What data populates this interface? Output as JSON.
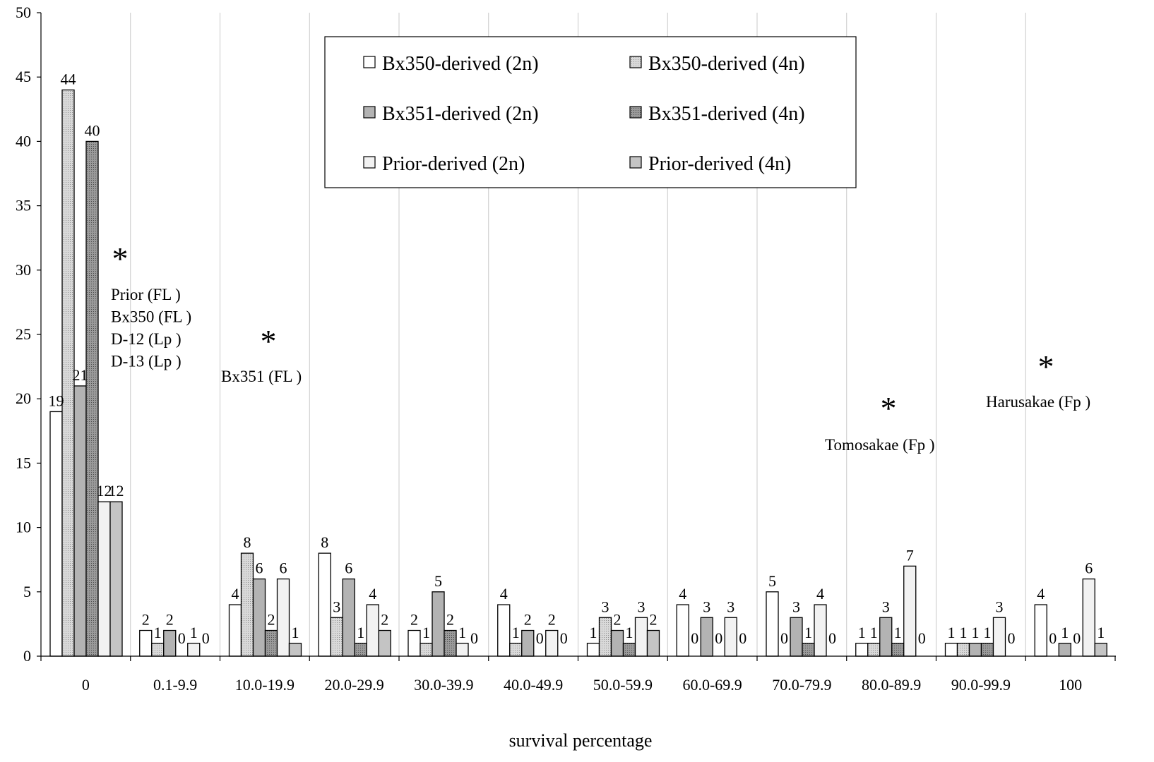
{
  "chart_data": {
    "type": "bar",
    "title": "",
    "xlabel": "survival percentage",
    "ylabel": "",
    "ylim": [
      0,
      50
    ],
    "yticks": [
      "0",
      "5",
      "10",
      "15",
      "20",
      "25",
      "30",
      "35",
      "40",
      "45",
      "50"
    ],
    "grid": "vertical category separators",
    "legend_position": "top-center",
    "categories": [
      "0",
      "0.1-9.9",
      "10.0-19.9",
      "20.0-29.9",
      "30.0-39.9",
      "40.0-49.9",
      "50.0-59.9",
      "60.0-69.9",
      "70.0-79.9",
      "80.0-89.9",
      "90.0-99.9",
      "100"
    ],
    "series": [
      {
        "name": "Bx350-derived (2n)",
        "fill": "#ffffff",
        "pattern": "none",
        "values": [
          19,
          2,
          4,
          8,
          2,
          4,
          1,
          4,
          5,
          1,
          1,
          4
        ]
      },
      {
        "name": "Bx350-derived (4n)",
        "fill": "#d9d9d9",
        "pattern": "dots",
        "values": [
          44,
          1,
          8,
          3,
          1,
          1,
          3,
          0,
          0,
          1,
          1,
          0
        ]
      },
      {
        "name": "Bx351-derived (2n)",
        "fill": "#b3b3b3",
        "pattern": "none",
        "values": [
          21,
          2,
          6,
          6,
          5,
          2,
          2,
          3,
          3,
          3,
          1,
          1
        ]
      },
      {
        "name": "Bx351-derived (4n)",
        "fill": "#9a9a9a",
        "pattern": "dots",
        "values": [
          40,
          0,
          2,
          1,
          2,
          0,
          1,
          0,
          1,
          1,
          1,
          0
        ]
      },
      {
        "name": "Prior-derived (2n)",
        "fill": "#f2f2f2",
        "pattern": "none",
        "values": [
          12,
          1,
          6,
          4,
          1,
          2,
          3,
          3,
          4,
          7,
          3,
          6
        ]
      },
      {
        "name": "Prior-derived (4n)",
        "fill": "#c4c4c4",
        "pattern": "none",
        "values": [
          12,
          0,
          1,
          2,
          0,
          0,
          2,
          0,
          0,
          0,
          0,
          1
        ]
      }
    ],
    "annotations": [
      {
        "marker": "*",
        "category": "0",
        "lines": [
          "Prior (FL )",
          "Bx350 (FL )",
          "D-12 (Lp )",
          "D-13 (Lp )"
        ]
      },
      {
        "marker": "*",
        "category": "10.0-19.9",
        "lines": [
          "Bx351 (FL )"
        ]
      },
      {
        "marker": "*",
        "category": "80.0-89.9",
        "lines": [
          "Tomosakae (Fp )"
        ]
      },
      {
        "marker": "*",
        "category": "100",
        "lines": [
          "Harusakae (Fp )"
        ]
      }
    ]
  }
}
